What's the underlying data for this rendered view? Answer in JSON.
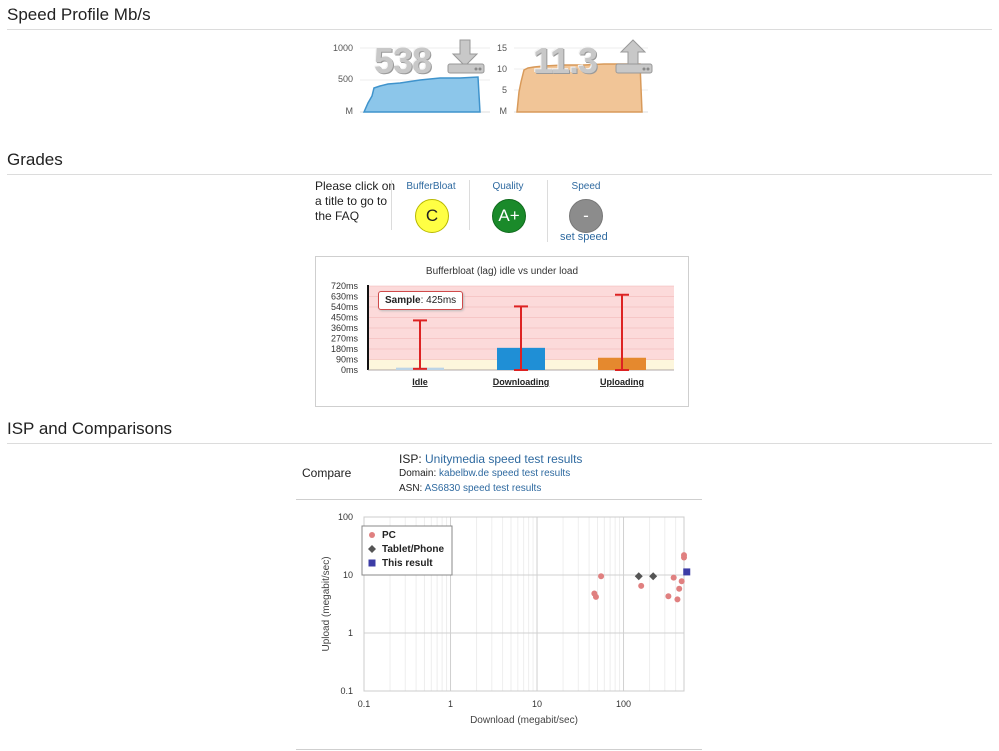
{
  "speed_profile": {
    "heading": "Speed Profile Mb/s",
    "download": {
      "value": "538",
      "icon": "download-icon",
      "axis_labels": [
        "1000",
        "500",
        "M"
      ],
      "color": "#7fbde4"
    },
    "upload": {
      "value": "11.3",
      "icon": "upload-icon",
      "axis_labels": [
        "15",
        "10",
        "5",
        "M"
      ],
      "color": "#eec08f"
    }
  },
  "grades": {
    "heading": "Grades",
    "faq_text": [
      "Please click on",
      "a title to go to",
      "the FAQ"
    ],
    "items": [
      {
        "title": "BufferBloat",
        "grade": "C",
        "color": "#ffff44"
      },
      {
        "title": "Quality",
        "grade": "A+",
        "color": "#1a8a2a"
      },
      {
        "title": "Speed",
        "grade": "-",
        "color": "#8c8c8c",
        "link": "set speed"
      }
    ]
  },
  "bufferbloat_chart": {
    "title": "Bufferbloat (lag) idle vs under load",
    "y_ticks": [
      "720ms",
      "630ms",
      "540ms",
      "450ms",
      "360ms",
      "270ms",
      "180ms",
      "90ms",
      "0ms"
    ],
    "tooltip": {
      "label": "Sample",
      "value": ": 425ms"
    },
    "categories": [
      "Idle",
      "Downloading",
      "Uploading"
    ]
  },
  "isp": {
    "heading": "ISP and Comparisons",
    "compare_label": "Compare",
    "isp_label": "ISP: ",
    "isp_link": "Unitymedia speed test results",
    "domain_label": "Domain: ",
    "domain_link": "kabelbw.de speed test results",
    "asn_label": "ASN: ",
    "asn_link": "AS6830 speed test results"
  },
  "chart_data": [
    {
      "type": "bar",
      "title": "Bufferbloat (lag) idle vs under load",
      "categories": [
        "Idle",
        "Downloading",
        "Uploading"
      ],
      "values": [
        20,
        190,
        105
      ],
      "error_high": [
        425,
        545,
        645
      ],
      "error_low": [
        10,
        0,
        0
      ],
      "ylim": [
        0,
        720
      ],
      "colors": [
        "#bcd4e6",
        "#1f8fd6",
        "#e5892e"
      ],
      "bands": [
        {
          "from": 0,
          "to": 90,
          "color": "#fdf6dc"
        },
        {
          "from": 90,
          "to": 720,
          "color": "#fcdada"
        }
      ]
    },
    {
      "type": "scatter",
      "xlabel": "Download (megabit/sec)",
      "ylabel": "Upload (megabit/sec)",
      "xscale": "log",
      "yscale": "log",
      "xlim": [
        0.1,
        500
      ],
      "ylim": [
        0.1,
        100
      ],
      "x_ticks": [
        "0.1",
        "1",
        "10",
        "100"
      ],
      "y_ticks": [
        "100",
        "10",
        "1",
        "0.1"
      ],
      "legend_position": "top-left",
      "series": [
        {
          "name": "PC",
          "marker": "circle",
          "color": "#e08080",
          "points": [
            [
              46,
              4.8
            ],
            [
              48,
              4.2
            ],
            [
              55,
              9.5
            ],
            [
              160,
              6.5
            ],
            [
              330,
              4.3
            ],
            [
              380,
              9.0
            ],
            [
              420,
              3.8
            ],
            [
              440,
              5.8
            ],
            [
              470,
              7.8
            ],
            [
              500,
              22
            ],
            [
              500,
              20
            ]
          ]
        },
        {
          "name": "Tablet/Phone",
          "marker": "diamond",
          "color": "#555555",
          "points": [
            [
              150,
              9.5
            ],
            [
              220,
              9.5
            ]
          ]
        },
        {
          "name": "This result",
          "marker": "square",
          "color": "#3c3ca6",
          "points": [
            [
              538,
              11.3
            ]
          ]
        }
      ]
    }
  ]
}
